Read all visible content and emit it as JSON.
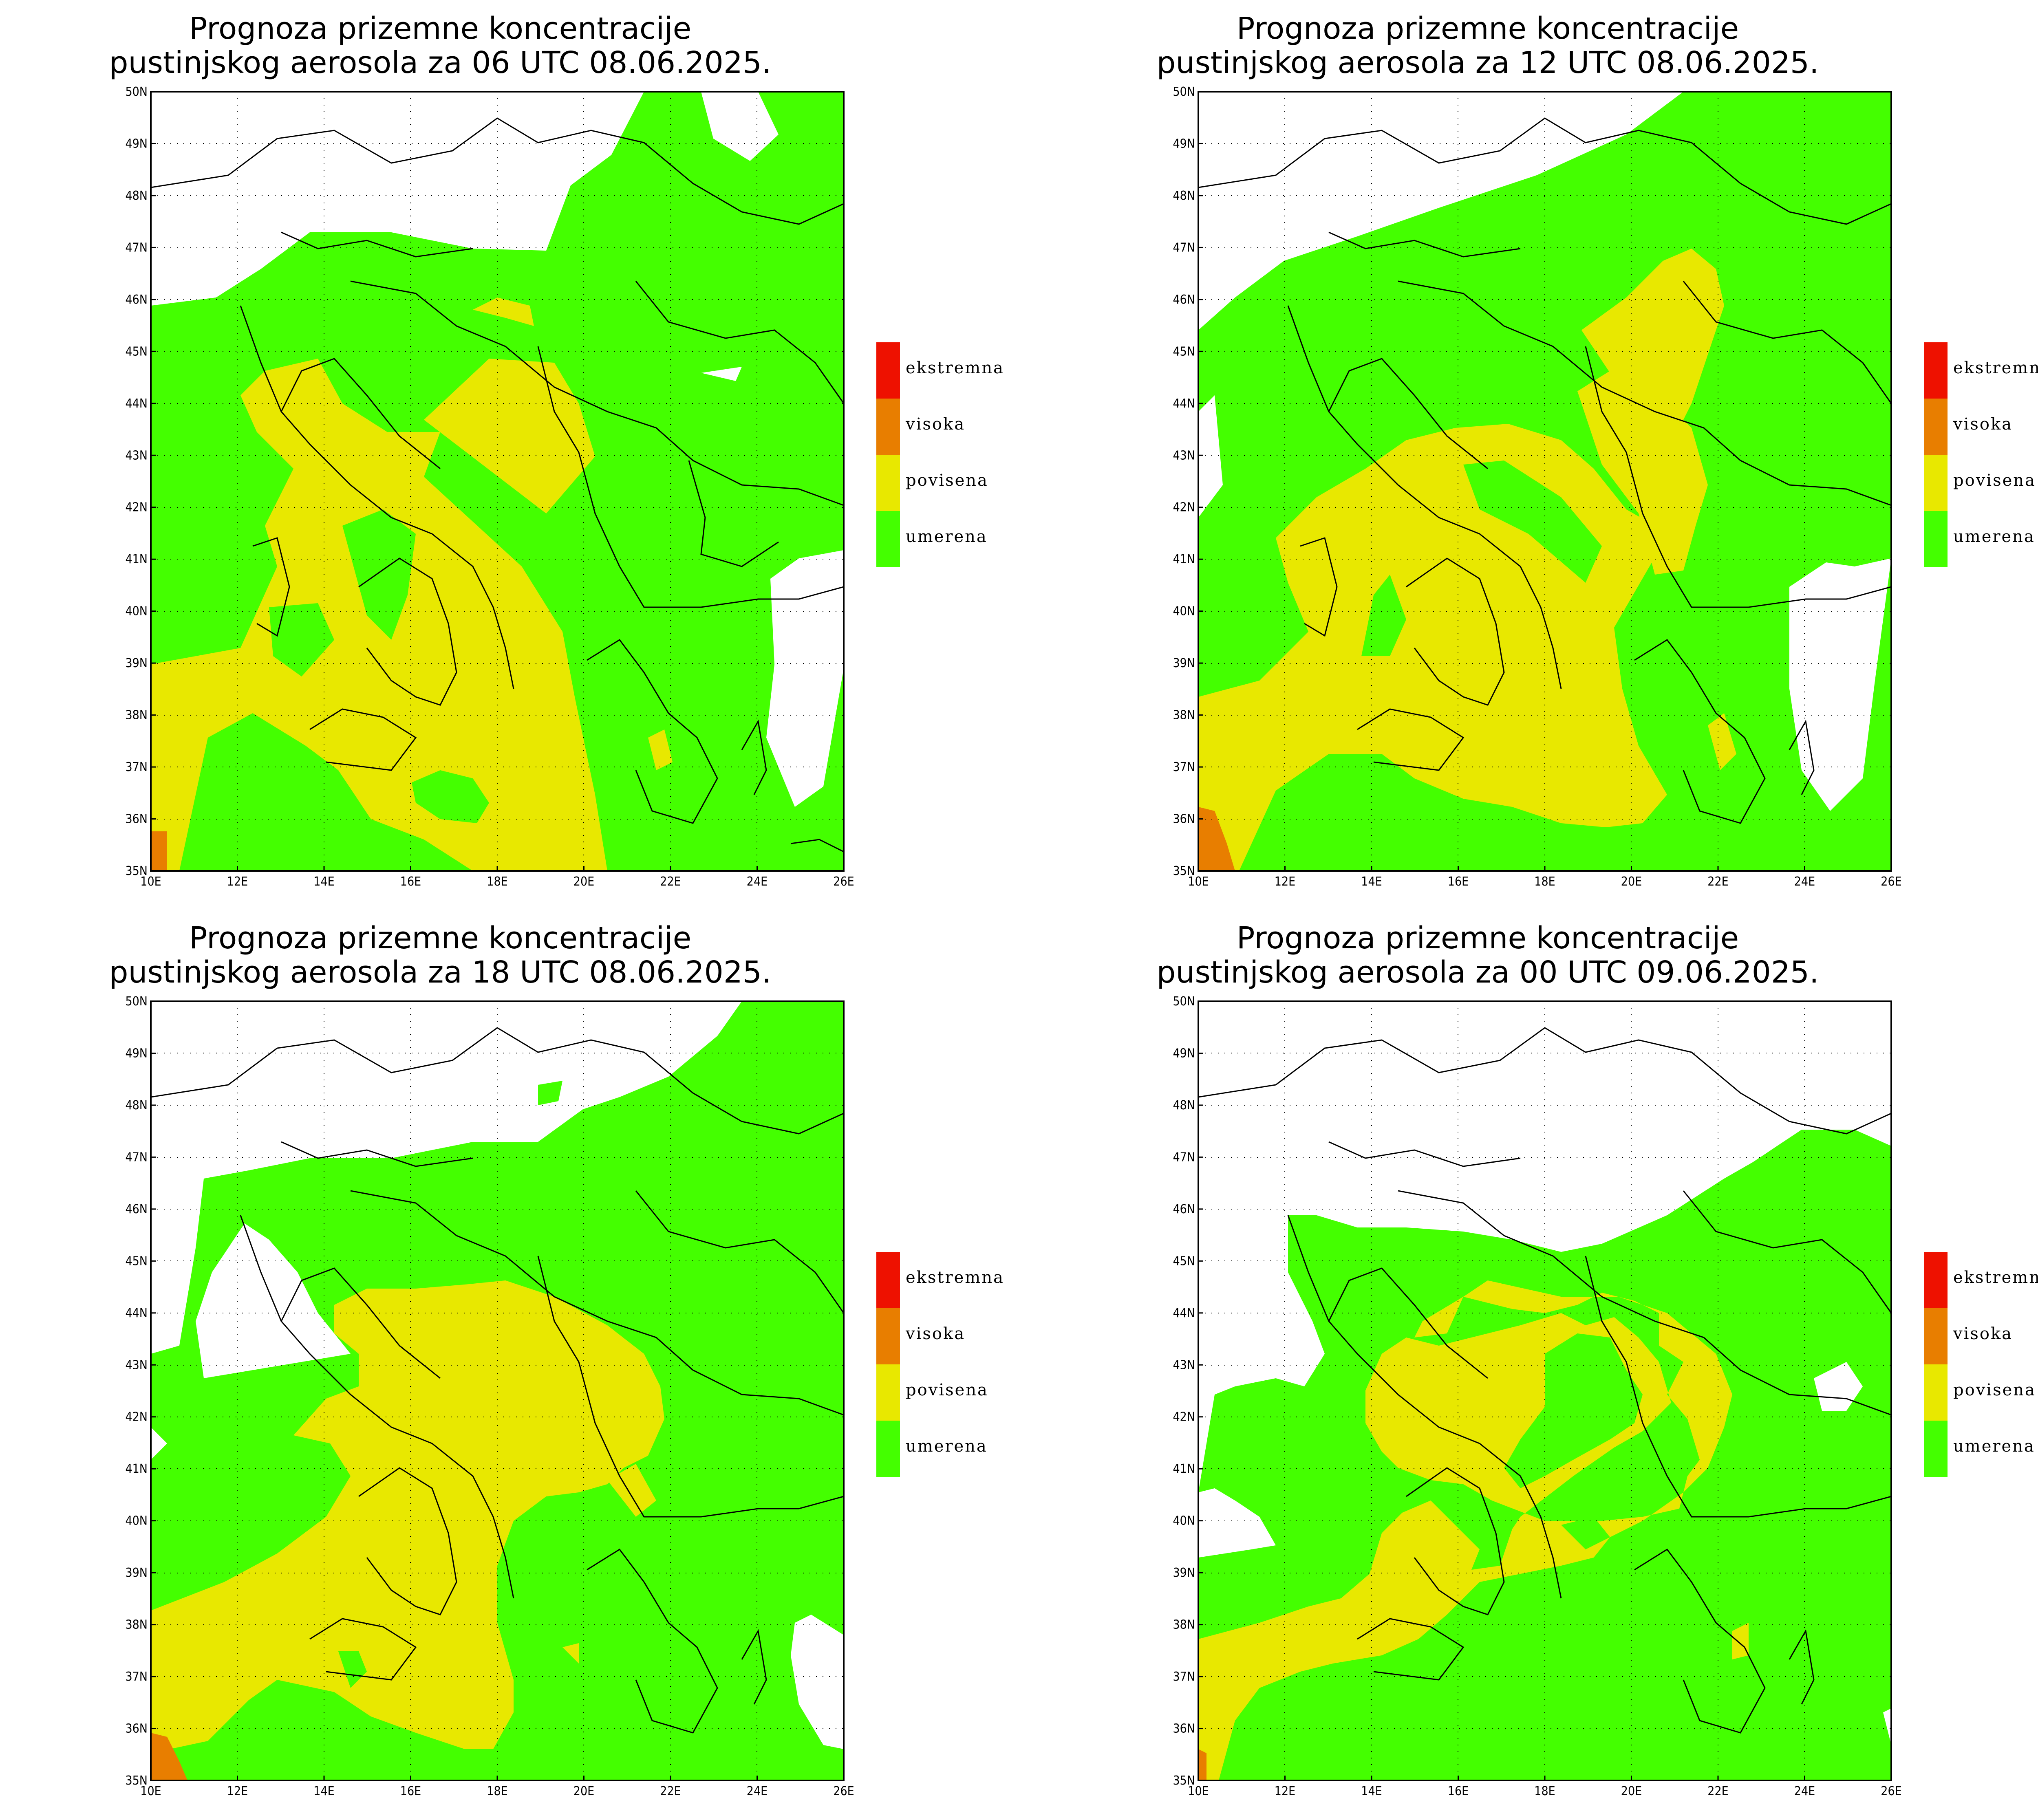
{
  "colors": {
    "umerena": "#44ff00",
    "povisena": "#e8e800",
    "visoka": "#e87e00",
    "ekstremna": "#ee1100",
    "land": "#ffffff",
    "border": "#000000"
  },
  "legend": [
    {
      "label": "ekstremna",
      "color": "#ee1100"
    },
    {
      "label": "visoka",
      "color": "#e87e00"
    },
    {
      "label": "povisena",
      "color": "#e8e800"
    },
    {
      "label": "umerena",
      "color": "#44ff00"
    }
  ],
  "axes": {
    "lat_labels": [
      "50N",
      "49N",
      "48N",
      "47N",
      "46N",
      "45N",
      "44N",
      "43N",
      "42N",
      "41N",
      "40N",
      "39N",
      "38N",
      "37N",
      "36N",
      "35N"
    ],
    "lon_labels": [
      "10E",
      "12E",
      "14E",
      "16E",
      "18E",
      "20E",
      "22E",
      "24E",
      "26E"
    ],
    "lat_range": [
      35,
      50
    ],
    "lon_range": [
      10,
      26
    ]
  },
  "panels": [
    {
      "title_line1": "Prognoza prizemne koncentracije",
      "title_line2": "pustinjskog aerosola za 06 UTC 08.06.2025."
    },
    {
      "title_line1": "Prognoza prizemne koncentracije",
      "title_line2": "pustinjskog aerosola za 12 UTC 08.06.2025."
    },
    {
      "title_line1": "Prognoza prizemne koncentracije",
      "title_line2": "pustinjskog aerosola za 18 UTC 08.06.2025."
    },
    {
      "title_line1": "Prognoza prizemne koncentracije",
      "title_line2": "pustinjskog aerosola za 00 UTC 09.06.2025."
    }
  ]
}
